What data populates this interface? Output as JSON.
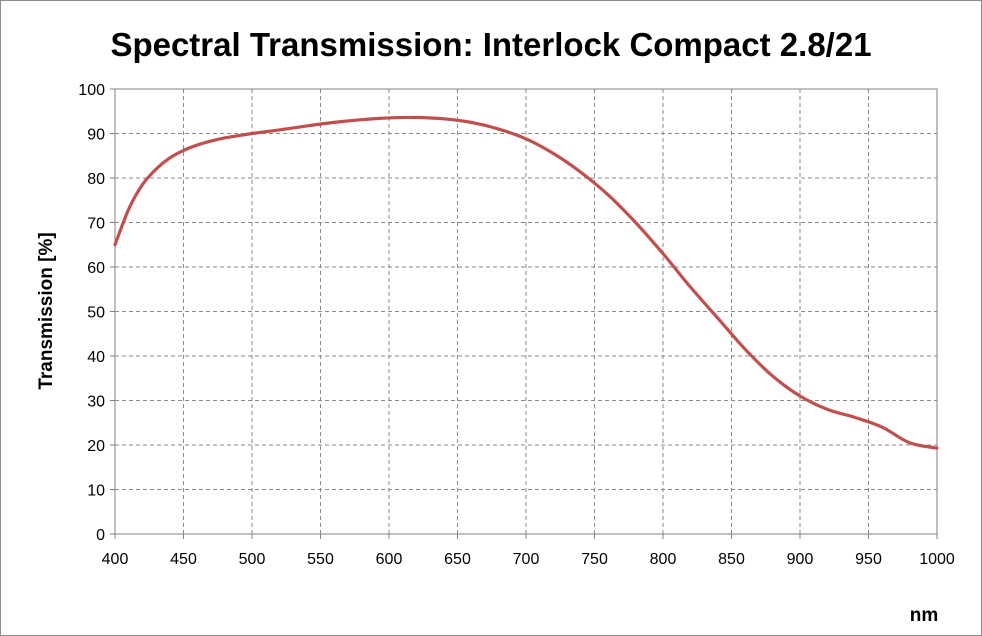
{
  "chart_data": {
    "type": "line",
    "title": "Spectral Transmission: Interlock Compact 2.8/21",
    "xlabel": "nm",
    "ylabel": "Transmission  [%]",
    "xlim": [
      400,
      1000
    ],
    "ylim": [
      0,
      100
    ],
    "xticks": [
      400,
      450,
      500,
      550,
      600,
      650,
      700,
      750,
      800,
      850,
      900,
      950,
      1000
    ],
    "yticks": [
      0,
      10,
      20,
      30,
      40,
      50,
      60,
      70,
      80,
      90,
      100
    ],
    "grid": true,
    "legend": "none",
    "series": [
      {
        "color": "#c0504d",
        "x": [
          400,
          410,
          420,
          430,
          440,
          450,
          460,
          470,
          480,
          490,
          500,
          520,
          540,
          560,
          580,
          600,
          620,
          640,
          660,
          680,
          700,
          720,
          740,
          760,
          780,
          800,
          820,
          840,
          860,
          880,
          900,
          920,
          940,
          960,
          980,
          1000
        ],
        "y": [
          65,
          73,
          78.5,
          82,
          84.5,
          86.2,
          87.4,
          88.3,
          89,
          89.5,
          90,
          90.8,
          91.7,
          92.5,
          93.1,
          93.5,
          93.6,
          93.3,
          92.5,
          91,
          88.8,
          85.5,
          81.3,
          76.2,
          70,
          63,
          55.5,
          48.5,
          41.5,
          35.5,
          31,
          28,
          26.2,
          24,
          20.5,
          19.3
        ]
      }
    ]
  }
}
